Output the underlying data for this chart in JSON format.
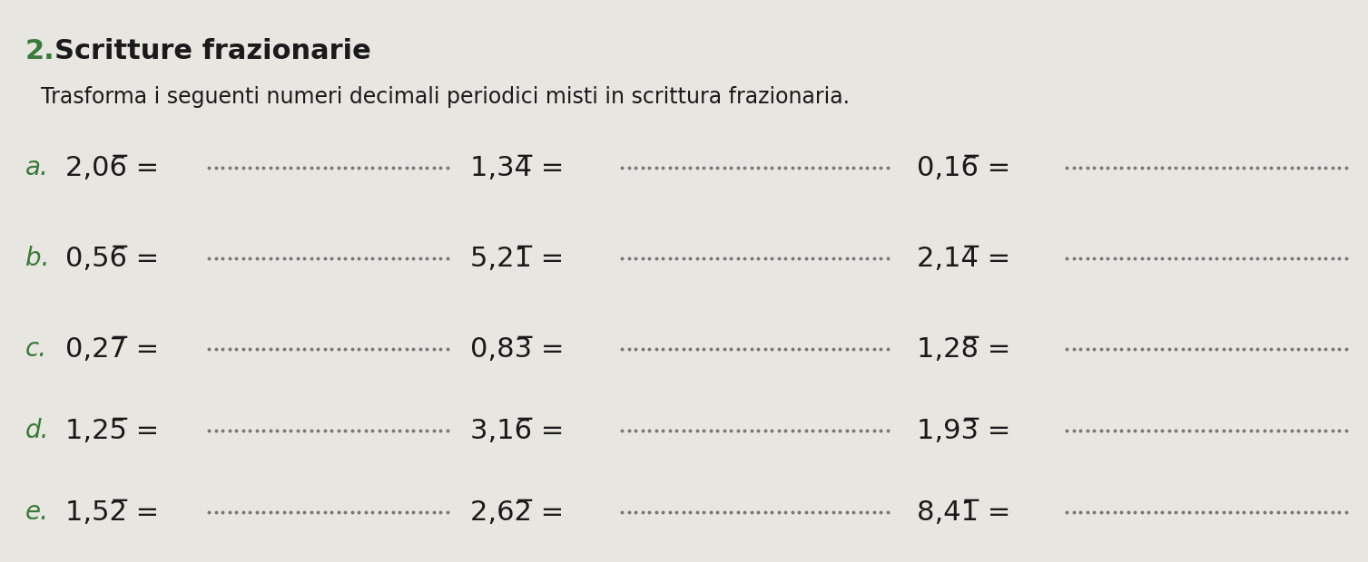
{
  "title_number": "2.",
  "title_bold": " Scritture frazionarie",
  "subtitle": "Trasforma i seguenti numeri decimali periodici misti in scrittura frazionaria.",
  "background_color": "#e8e6e0",
  "label_color": "#3a7a3a",
  "text_color": "#1a1a1a",
  "dot_line_color": "#777777",
  "rows": [
    {
      "label": "a.",
      "col1_prefix": "2,0",
      "col1_overline": "6",
      "col2_prefix": "1,3",
      "col2_overline": "4",
      "col3_prefix": "0,1",
      "col3_overline": "6"
    },
    {
      "label": "b.",
      "col1_prefix": "0,5",
      "col1_overline": "6",
      "col2_prefix": "5,2",
      "col2_overline": "1",
      "col3_prefix": "2,1",
      "col3_overline": "4"
    },
    {
      "label": "c.",
      "col1_prefix": "0,2",
      "col1_overline": "7",
      "col2_prefix": "0,8",
      "col2_overline": "3",
      "col3_prefix": "1,2",
      "col3_overline": "8"
    },
    {
      "label": "d.",
      "col1_prefix": "1,2",
      "col1_overline": "5",
      "col2_prefix": "3,1",
      "col2_overline": "6",
      "col3_prefix": "1,9",
      "col3_overline": "3"
    },
    {
      "label": "e.",
      "col1_prefix": "1,5",
      "col1_overline": "2",
      "col2_prefix": "2,6",
      "col2_overline": "2",
      "col3_prefix": "8,4",
      "col3_overline": "1"
    }
  ]
}
